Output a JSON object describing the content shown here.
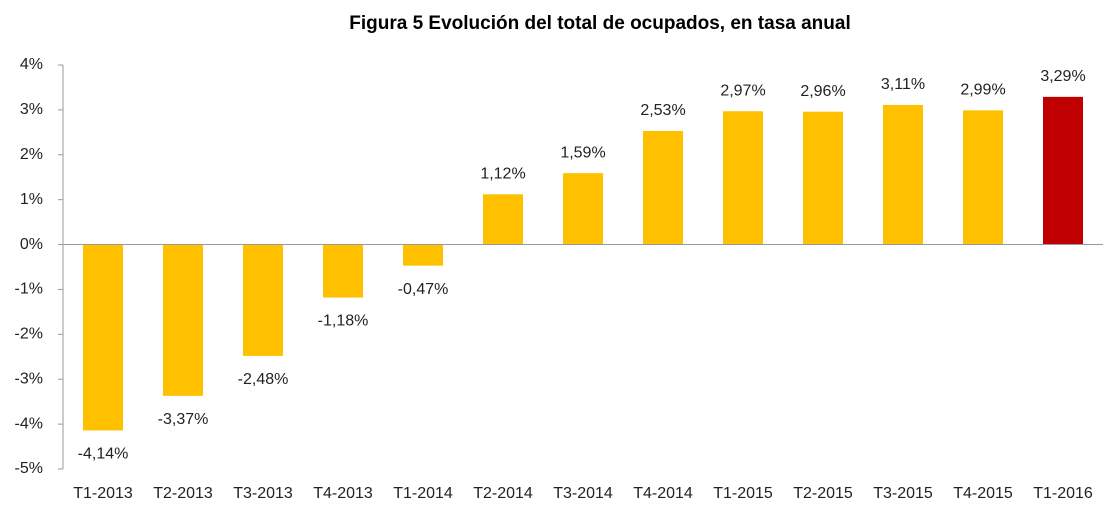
{
  "chart_data": {
    "type": "bar",
    "title": "Figura 5 Evolución del total de ocupados, en tasa anual",
    "categories": [
      "T1-2013",
      "T2-2013",
      "T3-2013",
      "T4-2013",
      "T1-2014",
      "T2-2014",
      "T3-2014",
      "T4-2014",
      "T1-2015",
      "T2-2015",
      "T3-2015",
      "T4-2015",
      "T1-2016"
    ],
    "values": [
      -4.14,
      -3.37,
      -2.48,
      -1.18,
      -0.47,
      1.12,
      1.59,
      2.53,
      2.97,
      2.96,
      3.11,
      2.99,
      3.29
    ],
    "value_labels": [
      "-4,14%",
      "-3,37%",
      "-2,48%",
      "-1,18%",
      "-0,47%",
      "1,12%",
      "1,59%",
      "2,53%",
      "2,97%",
      "2,96%",
      "3,11%",
      "2,99%",
      "3,29%"
    ],
    "colors": [
      "#ffc000",
      "#ffc000",
      "#ffc000",
      "#ffc000",
      "#ffc000",
      "#ffc000",
      "#ffc000",
      "#ffc000",
      "#ffc000",
      "#ffc000",
      "#ffc000",
      "#ffc000",
      "#c00000"
    ],
    "ylim": [
      -5,
      4
    ],
    "yticks": [
      {
        "value": -5,
        "label": "-5%"
      },
      {
        "value": -4,
        "label": "-4%"
      },
      {
        "value": -3,
        "label": "-3%"
      },
      {
        "value": -2,
        "label": "-2%"
      },
      {
        "value": -1,
        "label": "-1%"
      },
      {
        "value": 0,
        "label": "0%"
      },
      {
        "value": 1,
        "label": "1%"
      },
      {
        "value": 2,
        "label": "2%"
      },
      {
        "value": 3,
        "label": "3%"
      },
      {
        "value": 4,
        "label": "4%"
      }
    ]
  }
}
